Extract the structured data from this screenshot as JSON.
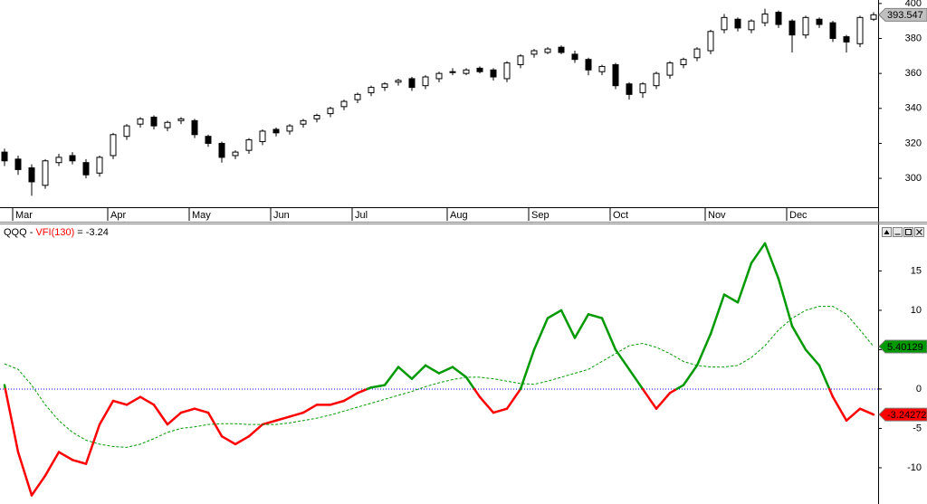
{
  "chart_data": [
    {
      "type": "candlestick",
      "categories": [
        null,
        "Mar",
        null,
        null,
        null,
        null,
        null,
        null,
        "Apr",
        null,
        null,
        null,
        null,
        null,
        "May",
        null,
        null,
        null,
        null,
        null,
        "Jun",
        null,
        null,
        null,
        null,
        null,
        "Jul",
        null,
        null,
        null,
        null,
        null,
        null,
        "Aug",
        null,
        null,
        null,
        null,
        null,
        "Sep",
        null,
        null,
        null,
        null,
        null,
        "Oct",
        null,
        null,
        null,
        null,
        null,
        null,
        "Nov",
        null,
        null,
        null,
        null,
        null,
        "Dec",
        null,
        null,
        null,
        null,
        null,
        null
      ],
      "open": [
        315,
        311,
        306,
        296,
        309,
        313,
        309,
        303,
        313,
        324,
        331,
        335,
        329,
        333,
        333,
        324,
        320,
        313,
        316,
        321,
        328,
        327,
        331,
        334,
        337,
        341,
        345,
        349,
        352,
        355,
        357,
        353,
        357,
        361,
        360,
        363,
        362,
        357,
        365,
        371,
        372,
        375,
        371,
        368,
        361,
        365,
        354,
        349,
        353,
        359,
        365,
        369,
        373,
        385,
        391,
        385,
        389,
        395,
        390,
        382,
        391,
        389,
        381,
        377,
        391
      ],
      "high": [
        317,
        313,
        308,
        311,
        314,
        315,
        311,
        313,
        326,
        331,
        335,
        336,
        333,
        335,
        334,
        325,
        321,
        316,
        323,
        328,
        329,
        331,
        334,
        337,
        341,
        345,
        349,
        353,
        355,
        357,
        358,
        359,
        361,
        363,
        363,
        364,
        363,
        367,
        371,
        374,
        375,
        376,
        373,
        369,
        365,
        366,
        355,
        355,
        361,
        367,
        369,
        375,
        385,
        394,
        392,
        391,
        397,
        396,
        391,
        393,
        392,
        390,
        382,
        393,
        395
      ],
      "low": [
        307,
        302,
        290,
        294,
        307,
        308,
        300,
        301,
        311,
        322,
        329,
        328,
        327,
        331,
        323,
        318,
        309,
        311,
        314,
        319,
        324,
        325,
        329,
        332,
        335,
        339,
        343,
        347,
        350,
        353,
        350,
        351,
        355,
        359,
        359,
        360,
        356,
        355,
        363,
        369,
        371,
        371,
        366,
        359,
        359,
        351,
        345,
        346,
        351,
        357,
        363,
        367,
        371,
        383,
        384,
        383,
        387,
        386,
        372,
        380,
        386,
        378,
        372,
        375,
        390
      ],
      "close": [
        310,
        305,
        298,
        310,
        312,
        310,
        302,
        312,
        325,
        330,
        334,
        330,
        332,
        334,
        325,
        320,
        312,
        315,
        322,
        327,
        326,
        330,
        333,
        336,
        340,
        344,
        348,
        352,
        354,
        356,
        352,
        358,
        360,
        361,
        362,
        361,
        358,
        366,
        370,
        373,
        374,
        372,
        368,
        362,
        364,
        353,
        348,
        354,
        360,
        366,
        368,
        374,
        384,
        392,
        386,
        390,
        394,
        388,
        382,
        392,
        388,
        380,
        378,
        392,
        393.547
      ],
      "up_color": "#ffffff",
      "down_color": "#000000",
      "tag_color": "#c0c0c0",
      "ylim": [
        284,
        402
      ],
      "yticks": [
        300,
        320,
        340,
        360,
        380,
        400
      ]
    },
    {
      "type": "line",
      "title_prefix": "QQQ - ",
      "title_suffix": " = -3.24",
      "series": [
        {
          "name": "VFI(130)",
          "positive_color": "#009900",
          "negative_color": "#ff0000",
          "values": [
            0.5,
            -8,
            -13.5,
            -11,
            -8,
            -9,
            -9.5,
            -4.5,
            -1.5,
            -2,
            -1,
            -2,
            -4.5,
            -3,
            -2.5,
            -3,
            -6,
            -7,
            -6,
            -4.5,
            -4,
            -3.5,
            -3,
            -2,
            -2,
            -1.5,
            -0.5,
            0.2,
            0.5,
            2.8,
            1.3,
            3,
            2,
            2.8,
            1.5,
            -1,
            -3,
            -2.5,
            0,
            5,
            9,
            10,
            6.5,
            9.5,
            9,
            5,
            2.5,
            0,
            -2.5,
            -0.5,
            0.5,
            3,
            7,
            12,
            11,
            16,
            18.5,
            14,
            8,
            5,
            3,
            -1,
            -4,
            -2.5,
            -3.24272
          ]
        },
        {
          "color": "#009900",
          "dashed": true,
          "values": [
            3.2,
            2.5,
            0.5,
            -2,
            -4,
            -5.5,
            -6.5,
            -7,
            -7.3,
            -7.4,
            -7,
            -6.3,
            -5.5,
            -5,
            -4.8,
            -4.5,
            -4.4,
            -4.4,
            -4.5,
            -4.5,
            -4.5,
            -4.3,
            -4,
            -3.7,
            -3.3,
            -2.8,
            -2.3,
            -1.8,
            -1.3,
            -0.8,
            -0.3,
            0.3,
            0.8,
            1.2,
            1.5,
            1.5,
            1.3,
            1,
            0.7,
            0.6,
            1,
            1.5,
            2,
            2.5,
            3.5,
            4.5,
            5.5,
            5.8,
            5.3,
            4.5,
            3.5,
            3,
            2.8,
            2.8,
            3,
            4,
            5.5,
            7.5,
            9,
            10,
            10.5,
            10.5,
            9.5,
            7.5,
            5.40129
          ]
        }
      ],
      "zero_line_color": "#0000ff",
      "ylim": [
        -14.6,
        19.3
      ],
      "yticks": [
        -10,
        -5,
        0,
        5,
        10,
        15
      ]
    }
  ]
}
